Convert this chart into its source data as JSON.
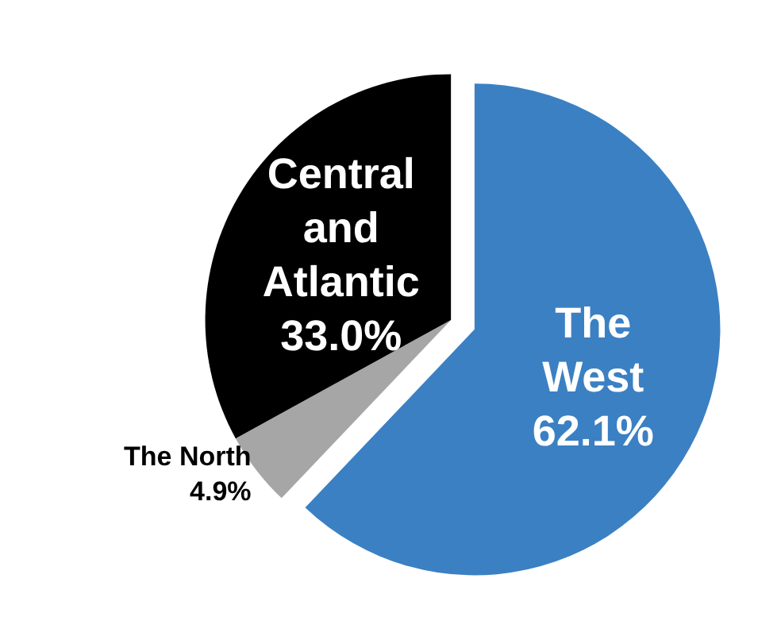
{
  "chart_data": {
    "type": "pie",
    "categories": [
      "The West",
      "The North",
      "Central and Atlantic"
    ],
    "values": [
      62.1,
      4.9,
      33.0
    ],
    "colors": [
      "#3b80c3",
      "#a6a6a6",
      "#000000"
    ],
    "value_labels": [
      "62.1%",
      "4.9%",
      "33.0%"
    ],
    "legend": false
  }
}
